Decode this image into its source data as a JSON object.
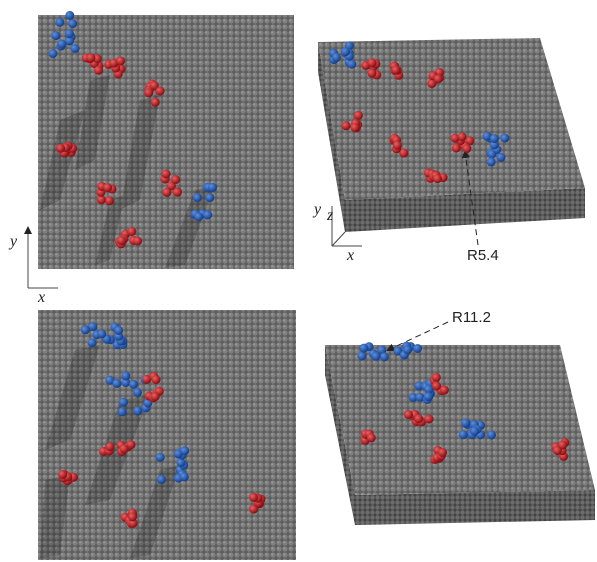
{
  "panels": {
    "top_left": {
      "axis": {
        "y": "y",
        "x": "x"
      }
    },
    "top_right": {
      "axis": {
        "y": "y",
        "z": "z",
        "x": "x"
      },
      "annotation": "R5.4"
    },
    "bottom_right": {
      "annotation": "R11.2"
    }
  }
}
